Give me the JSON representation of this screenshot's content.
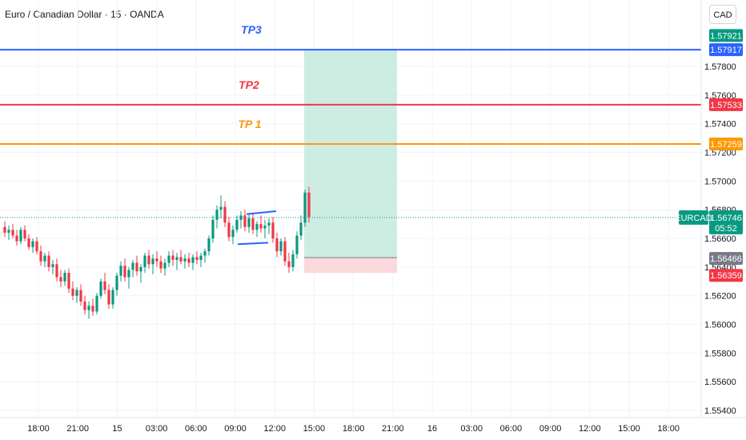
{
  "header": {
    "title": "Euro / Canadian Dollar · 15 · OANDA",
    "currency_button": "CAD"
  },
  "colors": {
    "up": "#089981",
    "down": "#f23645",
    "tp3": "#2962ff",
    "tp2": "#f23645",
    "tp1": "#ff9800",
    "profit_zone": "#c8ebe0",
    "loss_zone": "#fbd5d8",
    "current_line": "#089981",
    "grid": "#f0f3fa",
    "triangle": "#2962ff",
    "stop_badge": "#787b86"
  },
  "chart_data": {
    "type": "candlestick",
    "symbol": "EURCAD",
    "ylim": [
      1.5535,
      1.5823
    ],
    "y_ticks": [
      1.578,
      1.576,
      1.574,
      1.572,
      1.57,
      1.568,
      1.566,
      1.564,
      1.562,
      1.56,
      1.558,
      1.556,
      1.554
    ],
    "y_tick_labels": [
      "1.57800",
      "1.57600",
      "1.57400",
      "1.57200",
      "1.57000",
      "1.56800",
      "1.56600",
      "1.56400",
      "1.56200",
      "1.56000",
      "1.55800",
      "1.55600",
      "1.55400"
    ],
    "x_tick_labels": [
      "18:00",
      "21:00",
      "15",
      "03:00",
      "06:00",
      "09:00",
      "12:00",
      "15:00",
      "18:00",
      "21:00",
      "16",
      "03:00",
      "06:00",
      "09:00",
      "12:00",
      "15:00",
      "18:00"
    ],
    "grid": true,
    "candles": [
      [
        1.5668,
        1.5672,
        1.5661,
        1.5664
      ],
      [
        1.5664,
        1.5669,
        1.5659,
        1.5666
      ],
      [
        1.5666,
        1.567,
        1.566,
        1.5662
      ],
      [
        1.5662,
        1.5666,
        1.5655,
        1.5658
      ],
      [
        1.5658,
        1.5668,
        1.5656,
        1.5666
      ],
      [
        1.5666,
        1.5669,
        1.5658,
        1.566
      ],
      [
        1.566,
        1.5663,
        1.5652,
        1.5654
      ],
      [
        1.5654,
        1.566,
        1.565,
        1.5658
      ],
      [
        1.5658,
        1.5661,
        1.5649,
        1.5651
      ],
      [
        1.5651,
        1.5655,
        1.5641,
        1.5644
      ],
      [
        1.5644,
        1.565,
        1.564,
        1.5648
      ],
      [
        1.5648,
        1.5651,
        1.5637,
        1.564
      ],
      [
        1.564,
        1.5645,
        1.5635,
        1.5642
      ],
      [
        1.5642,
        1.5646,
        1.563,
        1.5633
      ],
      [
        1.5633,
        1.5638,
        1.5626,
        1.563
      ],
      [
        1.563,
        1.5638,
        1.5627,
        1.5636
      ],
      [
        1.5636,
        1.5639,
        1.5622,
        1.5625
      ],
      [
        1.5625,
        1.563,
        1.5617,
        1.562
      ],
      [
        1.562,
        1.5626,
        1.5615,
        1.5624
      ],
      [
        1.5624,
        1.5628,
        1.5613,
        1.5616
      ],
      [
        1.5616,
        1.562,
        1.5607,
        1.561
      ],
      [
        1.561,
        1.5616,
        1.5604,
        1.5613
      ],
      [
        1.5613,
        1.5618,
        1.5606,
        1.5609
      ],
      [
        1.5609,
        1.5622,
        1.5607,
        1.562
      ],
      [
        1.562,
        1.5632,
        1.5618,
        1.563
      ],
      [
        1.563,
        1.5636,
        1.5621,
        1.5624
      ],
      [
        1.5624,
        1.5628,
        1.5611,
        1.5614
      ],
      [
        1.5614,
        1.5626,
        1.5611,
        1.5624
      ],
      [
        1.5624,
        1.5636,
        1.562,
        1.5634
      ],
      [
        1.5634,
        1.5644,
        1.563,
        1.5641
      ],
      [
        1.5641,
        1.5646,
        1.563,
        1.5633
      ],
      [
        1.5633,
        1.564,
        1.5625,
        1.5638
      ],
      [
        1.5638,
        1.5645,
        1.5633,
        1.5643
      ],
      [
        1.5643,
        1.5648,
        1.5634,
        1.5637
      ],
      [
        1.5637,
        1.5642,
        1.5629,
        1.564
      ],
      [
        1.564,
        1.565,
        1.5636,
        1.5648
      ],
      [
        1.5648,
        1.5652,
        1.5639,
        1.5642
      ],
      [
        1.5642,
        1.5649,
        1.5635,
        1.5646
      ],
      [
        1.5646,
        1.5651,
        1.564,
        1.5644
      ],
      [
        1.5644,
        1.5648,
        1.5636,
        1.5639
      ],
      [
        1.5639,
        1.5646,
        1.5634,
        1.5643
      ],
      [
        1.5643,
        1.5651,
        1.564,
        1.5648
      ],
      [
        1.5648,
        1.5652,
        1.5641,
        1.5645
      ],
      [
        1.5645,
        1.565,
        1.5638,
        1.5647
      ],
      [
        1.5647,
        1.5652,
        1.5642,
        1.5644
      ],
      [
        1.5644,
        1.5649,
        1.5639,
        1.5646
      ],
      [
        1.5646,
        1.565,
        1.564,
        1.5643
      ],
      [
        1.5643,
        1.5649,
        1.5638,
        1.5647
      ],
      [
        1.5647,
        1.5651,
        1.5642,
        1.5645
      ],
      [
        1.5645,
        1.565,
        1.564,
        1.5648
      ],
      [
        1.5648,
        1.5653,
        1.5643,
        1.5651
      ],
      [
        1.5651,
        1.5662,
        1.5648,
        1.566
      ],
      [
        1.566,
        1.5676,
        1.5657,
        1.5673
      ],
      [
        1.5673,
        1.5683,
        1.5667,
        1.568
      ],
      [
        1.568,
        1.569,
        1.5674,
        1.5682
      ],
      [
        1.5682,
        1.5686,
        1.5668,
        1.5671
      ],
      [
        1.5671,
        1.5675,
        1.5658,
        1.5661
      ],
      [
        1.5661,
        1.5669,
        1.5656,
        1.5666
      ],
      [
        1.5666,
        1.5676,
        1.5664,
        1.5673
      ],
      [
        1.5673,
        1.5679,
        1.5667,
        1.5676
      ],
      [
        1.5676,
        1.568,
        1.5665,
        1.5668
      ],
      [
        1.5668,
        1.5677,
        1.5664,
        1.5674
      ],
      [
        1.5674,
        1.5678,
        1.5663,
        1.5666
      ],
      [
        1.5666,
        1.5672,
        1.5661,
        1.567
      ],
      [
        1.567,
        1.5676,
        1.5664,
        1.5667
      ],
      [
        1.5667,
        1.5673,
        1.566,
        1.5669
      ],
      [
        1.5669,
        1.5674,
        1.5663,
        1.5671
      ],
      [
        1.5671,
        1.5675,
        1.5657,
        1.566
      ],
      [
        1.566,
        1.5664,
        1.5647,
        1.5651
      ],
      [
        1.5651,
        1.566,
        1.5648,
        1.5658
      ],
      [
        1.5658,
        1.5661,
        1.5641,
        1.5644
      ],
      [
        1.5644,
        1.565,
        1.5636,
        1.564
      ],
      [
        1.564,
        1.5652,
        1.5637,
        1.5649
      ],
      [
        1.5649,
        1.5665,
        1.5646,
        1.5662
      ],
      [
        1.5662,
        1.5676,
        1.5659,
        1.5671
      ],
      [
        1.5671,
        1.5694,
        1.5668,
        1.5692
      ],
      [
        1.5692,
        1.5696,
        1.5671,
        1.5675
      ]
    ],
    "levels": [
      {
        "label": "TP3",
        "price": 1.57917,
        "badge": "1.57917",
        "color": "tp3"
      },
      {
        "label": "TP2",
        "price": 1.57533,
        "badge": "1.57533",
        "color": "tp2"
      },
      {
        "label": "TP 1",
        "price": 1.57259,
        "badge": "1.57259",
        "color": "tp1"
      }
    ],
    "current_price": {
      "symbol": "EURCAD",
      "price": 1.56746,
      "badge": "1.56746",
      "countdown": "05:52"
    },
    "target_badge": "1.57921",
    "entry_badge": "1.56466",
    "stop_badge": "1.56359",
    "position": {
      "entry": 1.56466,
      "target": 1.57921,
      "stop": 1.56359
    },
    "triangle": {
      "upper": [
        [
          1.5677,
          1.567
        ],
        [
          1.5678,
          1.5674
        ],
        [
          1.5679,
          1.567
        ]
      ],
      "lower": [
        1.5656,
        1.5657
      ]
    }
  }
}
